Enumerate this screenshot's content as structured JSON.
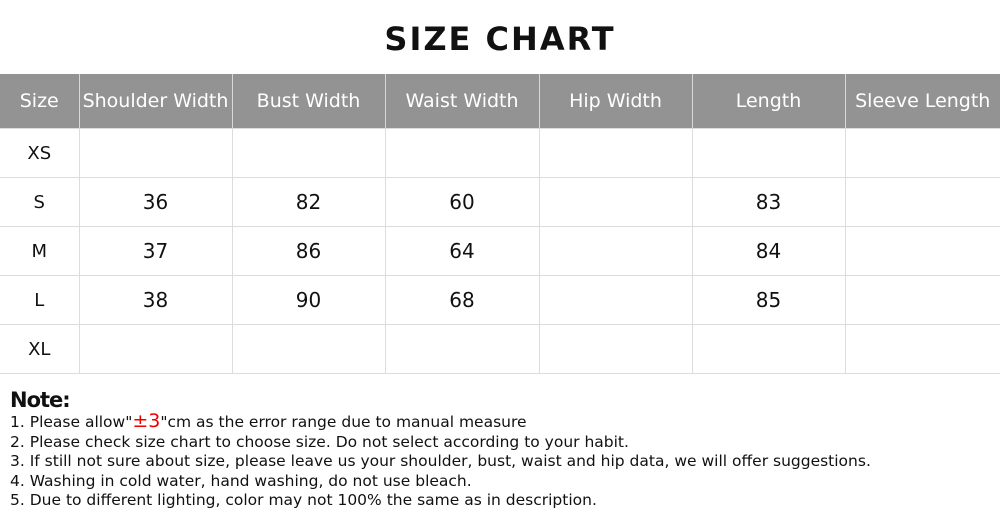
{
  "title": "SIZE CHART",
  "table": {
    "headers": [
      "Size",
      "Shoulder Width",
      "Bust Width",
      "Waist Width",
      "Hip Width",
      "Length",
      "Sleeve Length"
    ],
    "rows": [
      [
        "XS",
        "",
        "",
        "",
        "",
        "",
        ""
      ],
      [
        "S",
        "36",
        "82",
        "60",
        "",
        "83",
        ""
      ],
      [
        "M",
        "37",
        "86",
        "64",
        "",
        "84",
        ""
      ],
      [
        "L",
        "38",
        "90",
        "68",
        "",
        "85",
        ""
      ],
      [
        "XL",
        "",
        "",
        "",
        "",
        "",
        ""
      ]
    ]
  },
  "notes": {
    "title": "Note:",
    "line1_pre": "1. Please allow\"",
    "line1_highlight": "±3",
    "line1_post": "\"cm as the error range due to manual measure",
    "lines": [
      "2. Please check size chart to choose size. Do not select according to your habit.",
      "3. If still not sure about size, please leave us your shoulder, bust, waist and hip data, we will offer suggestions.",
      "4. Washing in cold water, hand washing, do not use bleach.",
      "5. Due to different lighting, color may not 100% the same as in description."
    ],
    "highlight_color": "#ee0000"
  }
}
